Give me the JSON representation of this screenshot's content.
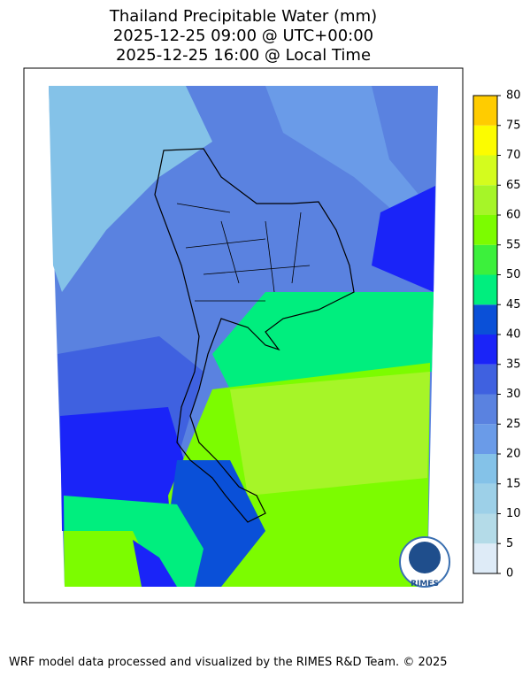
{
  "header": {
    "title": [
      "Thailand Precipitable Water (mm)",
      "2025-12-25 09:00 @ UTC+00:00",
      "2025-12-25 16:00 @ Local Time"
    ]
  },
  "colorbar": {
    "lim": [
      0,
      80
    ],
    "ticks": [
      0,
      5,
      10,
      15,
      20,
      25,
      30,
      35,
      40,
      45,
      50,
      55,
      60,
      65,
      70,
      75,
      80
    ],
    "colors": [
      "#deebf7",
      "#b4dbe8",
      "#9dd0e8",
      "#84c2e8",
      "#6a9be8",
      "#5a82e0",
      "#3f61e0",
      "#1a24f8",
      "#0a50d8",
      "#00ee7e",
      "#3cf03c",
      "#7cfc00",
      "#a6f528",
      "#d4fc1e",
      "#fcfc00",
      "#ffcc00"
    ]
  },
  "logo": {
    "text": "RIMES"
  },
  "footer": {
    "text": "WRF model data processed and visualized by the RIMES R&D Team. © 2025"
  }
}
